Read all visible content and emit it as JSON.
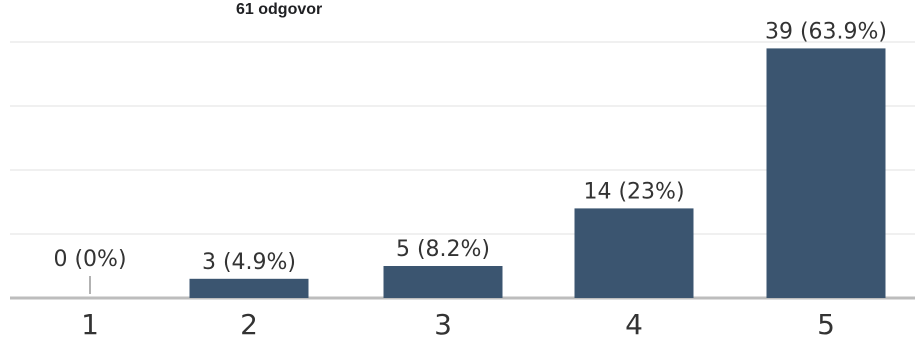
{
  "header": {
    "response_count": "61 odgovor"
  },
  "chart_data": {
    "type": "bar",
    "categories": [
      "1",
      "2",
      "3",
      "4",
      "5"
    ],
    "values": [
      0,
      3,
      5,
      14,
      39
    ],
    "value_labels": [
      "0 (0%)",
      "3 (4.9%)",
      "5 (8.2%)",
      "14 (23%)",
      "39 (63.9%)"
    ],
    "ylim": [
      0,
      40
    ],
    "grid": true,
    "colors": {
      "bar": "#3b5570",
      "grid": "#e0e0e0",
      "axis": "#bdbdbd",
      "text": "#333333"
    }
  }
}
